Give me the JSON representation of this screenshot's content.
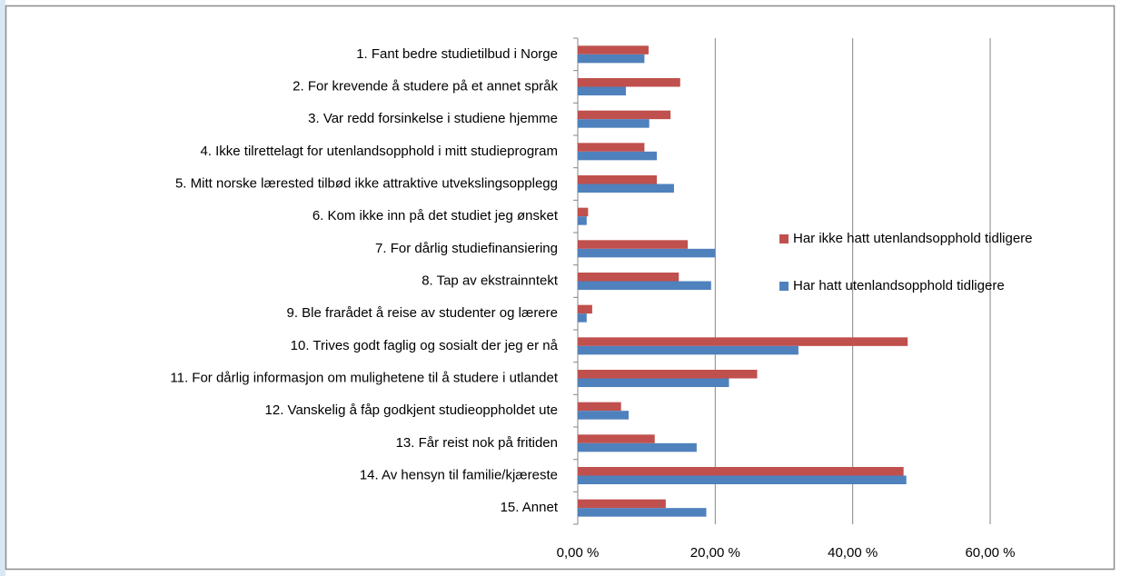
{
  "chart_data": {
    "type": "bar",
    "orientation": "horizontal",
    "categories": [
      "1. Fant bedre studietilbud i Norge",
      "2. For krevende å studere på et annet språk",
      "3. Var redd forsinkelse i studiene hjemme",
      "4. Ikke tilrettelagt for utenlandsopphold i mitt studieprogram",
      "5. Mitt norske lærested tilbød ikke attraktive utvekslingsopplegg",
      "6. Kom ikke inn på det studiet jeg ønsket",
      "7. For dårlig studiefinansiering",
      "8. Tap av ekstrainntekt",
      "9. Ble frarådet å reise av studenter og lærere",
      "10. Trives godt faglig og sosialt der jeg er nå",
      "11. For dårlig informasjon om mulighetene til å studere i utlandet",
      "12. Vanskelig å fåp godkjent studieoppholdet ute",
      "13. Får reist nok på fritiden",
      "14. Av hensyn til familie/kjæreste",
      "15. Annet"
    ],
    "series": [
      {
        "name": "Har ikke hatt utenlandsopphold tidligere",
        "color": "#c0504d",
        "values": [
          10.3,
          14.9,
          13.5,
          9.7,
          11.5,
          1.5,
          16.0,
          14.7,
          2.1,
          48.0,
          26.1,
          6.3,
          11.2,
          47.4,
          12.8
        ]
      },
      {
        "name": "Har hatt utenlandsopphold tidligere",
        "color": "#4f81bd",
        "values": [
          9.7,
          7.0,
          10.4,
          11.5,
          14.0,
          1.3,
          20.0,
          19.4,
          1.3,
          32.1,
          22.0,
          7.4,
          17.3,
          47.8,
          18.7
        ]
      }
    ],
    "xlim": [
      0,
      60
    ],
    "xticks": [
      {
        "value": 0,
        "label": "0,00 %"
      },
      {
        "value": 20,
        "label": "20,00 %"
      },
      {
        "value": 40,
        "label": "40,00 %"
      },
      {
        "value": 60,
        "label": "60,00 %"
      }
    ],
    "grid": true,
    "legend": "right"
  }
}
